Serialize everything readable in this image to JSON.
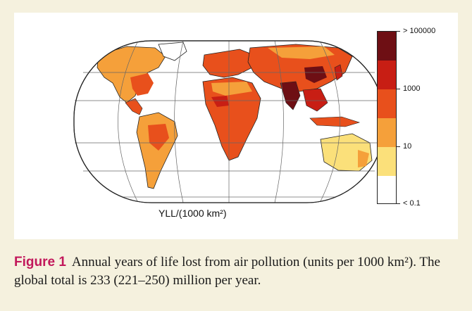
{
  "figure": {
    "label": "Figure 1",
    "caption_text": "Annual years of life lost from air pollution (units per 1000 km²). The global total is 233 (221–250) million per year."
  },
  "map": {
    "projection": "eckert-like pseudocylindrical",
    "axis_label": "YLL/(1000 km²)",
    "colors": {
      "lt_0_1": "#ffffff",
      "band_1": "#fbe07a",
      "band_10": "#f5a03a",
      "band_100": "#e8501c",
      "band_1000": "#c81e14",
      "band_top": "#6e0f14",
      "outline": "#222222",
      "grid": "#666666"
    }
  },
  "legend": {
    "labels": [
      "> 100000",
      "1000",
      "10",
      "< 0.1"
    ]
  }
}
